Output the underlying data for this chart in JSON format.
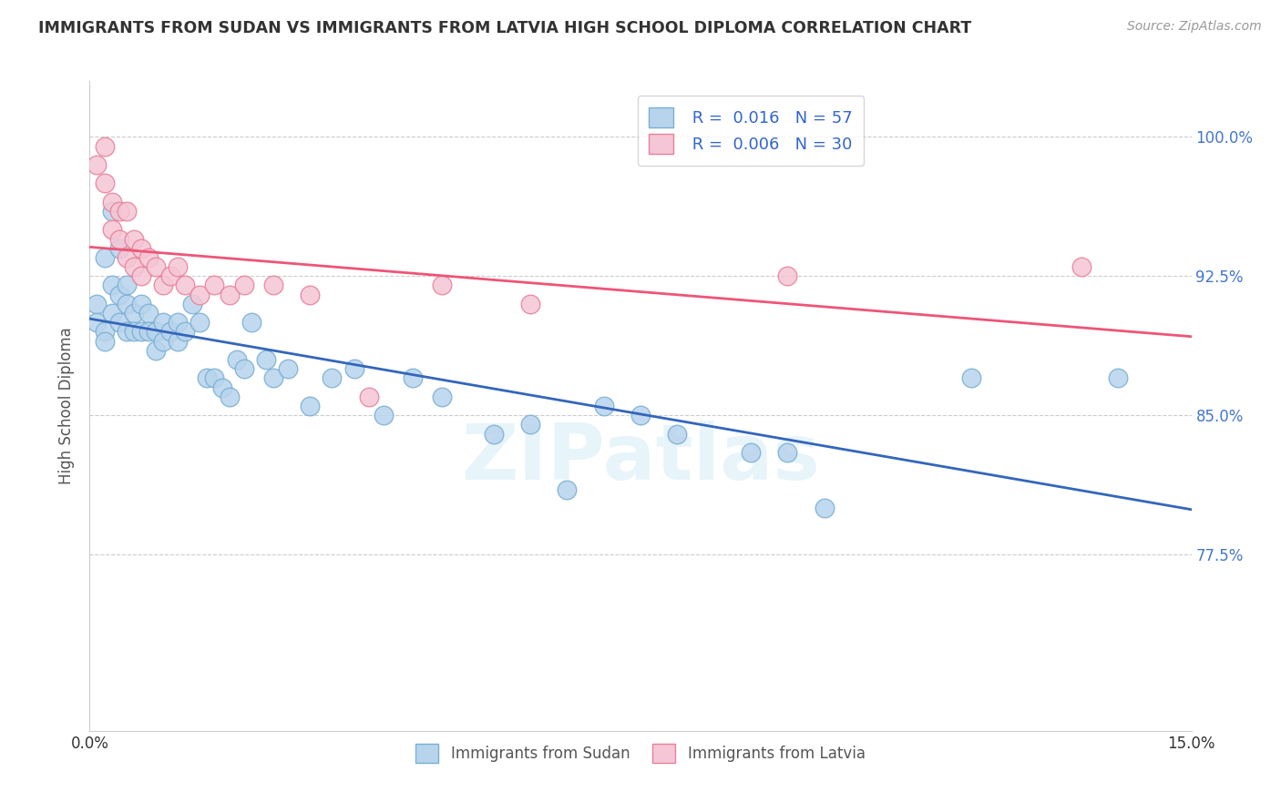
{
  "title": "IMMIGRANTS FROM SUDAN VS IMMIGRANTS FROM LATVIA HIGH SCHOOL DIPLOMA CORRELATION CHART",
  "source": "Source: ZipAtlas.com",
  "ylabel": "High School Diploma",
  "xlim": [
    0.0,
    0.15
  ],
  "ylim": [
    0.68,
    1.03
  ],
  "xticks": [
    0.0,
    0.15
  ],
  "xticklabels": [
    "0.0%",
    "15.0%"
  ],
  "ytick_positions": [
    0.775,
    0.85,
    0.925,
    1.0
  ],
  "ytick_labels": [
    "77.5%",
    "85.0%",
    "92.5%",
    "100.0%"
  ],
  "sudan_color": "#b8d4ed",
  "sudan_edge_color": "#7aafd4",
  "latvia_color": "#f5c6d5",
  "latvia_edge_color": "#e8809a",
  "sudan_R": "0.016",
  "sudan_N": "57",
  "latvia_R": "0.006",
  "latvia_N": "30",
  "sudan_line_color": "#3366bb",
  "latvia_line_color": "#ee5577",
  "background_color": "#ffffff",
  "sudan_x": [
    0.001,
    0.001,
    0.002,
    0.002,
    0.002,
    0.003,
    0.003,
    0.003,
    0.004,
    0.004,
    0.004,
    0.005,
    0.005,
    0.005,
    0.006,
    0.006,
    0.007,
    0.007,
    0.008,
    0.008,
    0.009,
    0.009,
    0.01,
    0.01,
    0.011,
    0.012,
    0.012,
    0.013,
    0.014,
    0.015,
    0.016,
    0.017,
    0.018,
    0.019,
    0.02,
    0.021,
    0.022,
    0.024,
    0.025,
    0.027,
    0.03,
    0.033,
    0.036,
    0.04,
    0.044,
    0.048,
    0.055,
    0.06,
    0.065,
    0.07,
    0.075,
    0.08,
    0.09,
    0.095,
    0.1,
    0.12,
    0.14
  ],
  "sudan_y": [
    0.91,
    0.9,
    0.935,
    0.895,
    0.89,
    0.96,
    0.92,
    0.905,
    0.94,
    0.915,
    0.9,
    0.92,
    0.91,
    0.895,
    0.905,
    0.895,
    0.91,
    0.895,
    0.905,
    0.895,
    0.895,
    0.885,
    0.9,
    0.89,
    0.895,
    0.9,
    0.89,
    0.895,
    0.91,
    0.9,
    0.87,
    0.87,
    0.865,
    0.86,
    0.88,
    0.875,
    0.9,
    0.88,
    0.87,
    0.875,
    0.855,
    0.87,
    0.875,
    0.85,
    0.87,
    0.86,
    0.84,
    0.845,
    0.81,
    0.855,
    0.85,
    0.84,
    0.83,
    0.83,
    0.8,
    0.87,
    0.87
  ],
  "latvia_x": [
    0.001,
    0.002,
    0.002,
    0.003,
    0.003,
    0.004,
    0.004,
    0.005,
    0.005,
    0.006,
    0.006,
    0.007,
    0.007,
    0.008,
    0.009,
    0.01,
    0.011,
    0.012,
    0.013,
    0.015,
    0.017,
    0.019,
    0.021,
    0.025,
    0.03,
    0.038,
    0.048,
    0.06,
    0.095,
    0.135
  ],
  "latvia_y": [
    0.985,
    0.995,
    0.975,
    0.965,
    0.95,
    0.96,
    0.945,
    0.96,
    0.935,
    0.945,
    0.93,
    0.94,
    0.925,
    0.935,
    0.93,
    0.92,
    0.925,
    0.93,
    0.92,
    0.915,
    0.92,
    0.915,
    0.92,
    0.92,
    0.915,
    0.86,
    0.92,
    0.91,
    0.925,
    0.93
  ]
}
